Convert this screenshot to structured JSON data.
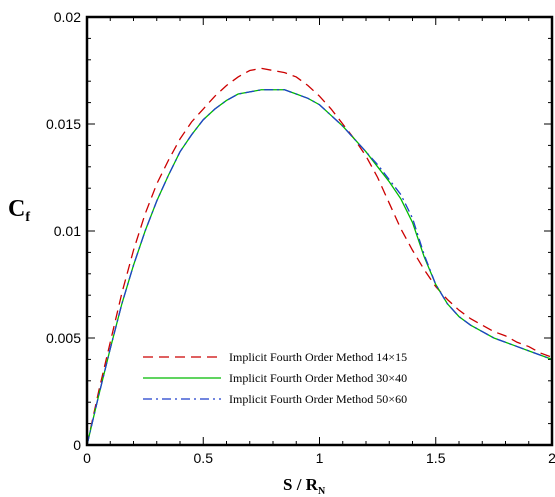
{
  "chart_data": {
    "type": "line",
    "xlabel": {
      "main": "S / R",
      "sub": "N"
    },
    "ylabel": {
      "main": "C",
      "sub": "f"
    },
    "xlim": [
      0,
      2
    ],
    "ylim": [
      0,
      0.02
    ],
    "xticks": [
      0,
      0.5,
      1,
      1.5,
      2
    ],
    "xtick_labels": [
      "0",
      "0.5",
      "1",
      "1.5",
      "2"
    ],
    "yticks": [
      0,
      0.005,
      0.01,
      0.015,
      0.02
    ],
    "ytick_labels": [
      "0",
      "0.005",
      "0.01",
      "0.015",
      "0.02"
    ],
    "grid": false,
    "legend_position": "lower-left",
    "series": [
      {
        "name": "Implicit Fourth Order Method 14×15",
        "color": "#cc0000",
        "dash": "dashed",
        "x": [
          0,
          0.05,
          0.1,
          0.15,
          0.2,
          0.25,
          0.3,
          0.35,
          0.4,
          0.45,
          0.5,
          0.55,
          0.6,
          0.65,
          0.7,
          0.75,
          0.8,
          0.85,
          0.9,
          0.95,
          1.0,
          1.05,
          1.1,
          1.15,
          1.2,
          1.25,
          1.3,
          1.35,
          1.4,
          1.45,
          1.5,
          1.55,
          1.6,
          1.65,
          1.7,
          1.75,
          1.8,
          1.85,
          1.9,
          1.95,
          2.0
        ],
        "y": [
          0,
          0.0025,
          0.0048,
          0.0071,
          0.0091,
          0.0108,
          0.0122,
          0.0133,
          0.0143,
          0.0151,
          0.0157,
          0.0163,
          0.0168,
          0.0172,
          0.0175,
          0.0176,
          0.0175,
          0.0174,
          0.0172,
          0.0168,
          0.0163,
          0.0157,
          0.015,
          0.0143,
          0.0135,
          0.0125,
          0.0113,
          0.0101,
          0.0091,
          0.0082,
          0.0074,
          0.0068,
          0.0063,
          0.0059,
          0.0056,
          0.0053,
          0.0051,
          0.0048,
          0.0046,
          0.0043,
          0.0041
        ]
      },
      {
        "name": "Implicit Fourth Order Method 30×40",
        "color": "#00bb00",
        "dash": "solid",
        "x": [
          0,
          0.05,
          0.1,
          0.15,
          0.2,
          0.25,
          0.3,
          0.35,
          0.4,
          0.45,
          0.5,
          0.55,
          0.6,
          0.65,
          0.7,
          0.75,
          0.8,
          0.85,
          0.9,
          0.95,
          1.0,
          1.05,
          1.1,
          1.15,
          1.2,
          1.25,
          1.3,
          1.35,
          1.4,
          1.45,
          1.5,
          1.55,
          1.6,
          1.65,
          1.7,
          1.75,
          1.8,
          1.85,
          1.9,
          1.95,
          2.0
        ],
        "y": [
          0,
          0.0023,
          0.0045,
          0.0066,
          0.0084,
          0.01,
          0.0114,
          0.0126,
          0.0137,
          0.0145,
          0.0152,
          0.0157,
          0.0161,
          0.0164,
          0.0165,
          0.0166,
          0.0166,
          0.0166,
          0.0164,
          0.0162,
          0.0159,
          0.0154,
          0.0149,
          0.0143,
          0.0137,
          0.013,
          0.0123,
          0.0115,
          0.0104,
          0.0088,
          0.0075,
          0.0066,
          0.006,
          0.0056,
          0.0053,
          0.005,
          0.0048,
          0.0046,
          0.0044,
          0.0042,
          0.004
        ]
      },
      {
        "name": "Implicit Fourth Order Method 50×60",
        "color": "#1f3fcc",
        "dash": "dashdot",
        "x": [
          0,
          0.05,
          0.1,
          0.15,
          0.2,
          0.25,
          0.3,
          0.35,
          0.4,
          0.45,
          0.5,
          0.55,
          0.6,
          0.65,
          0.7,
          0.75,
          0.8,
          0.85,
          0.9,
          0.95,
          1.0,
          1.05,
          1.1,
          1.15,
          1.2,
          1.25,
          1.3,
          1.35,
          1.4,
          1.45,
          1.5,
          1.55,
          1.6,
          1.65,
          1.7,
          1.75,
          1.8,
          1.85,
          1.9,
          1.95,
          2.0
        ],
        "y": [
          0,
          0.0023,
          0.0045,
          0.0066,
          0.0084,
          0.01,
          0.0114,
          0.0126,
          0.0137,
          0.0145,
          0.0152,
          0.0157,
          0.0161,
          0.0164,
          0.0165,
          0.0166,
          0.0166,
          0.0166,
          0.0164,
          0.0162,
          0.0159,
          0.0154,
          0.0149,
          0.0143,
          0.0137,
          0.0131,
          0.0124,
          0.0117,
          0.0106,
          0.0089,
          0.0075,
          0.0066,
          0.006,
          0.0056,
          0.0053,
          0.005,
          0.0048,
          0.0046,
          0.0044,
          0.0042,
          0.004
        ]
      }
    ]
  }
}
